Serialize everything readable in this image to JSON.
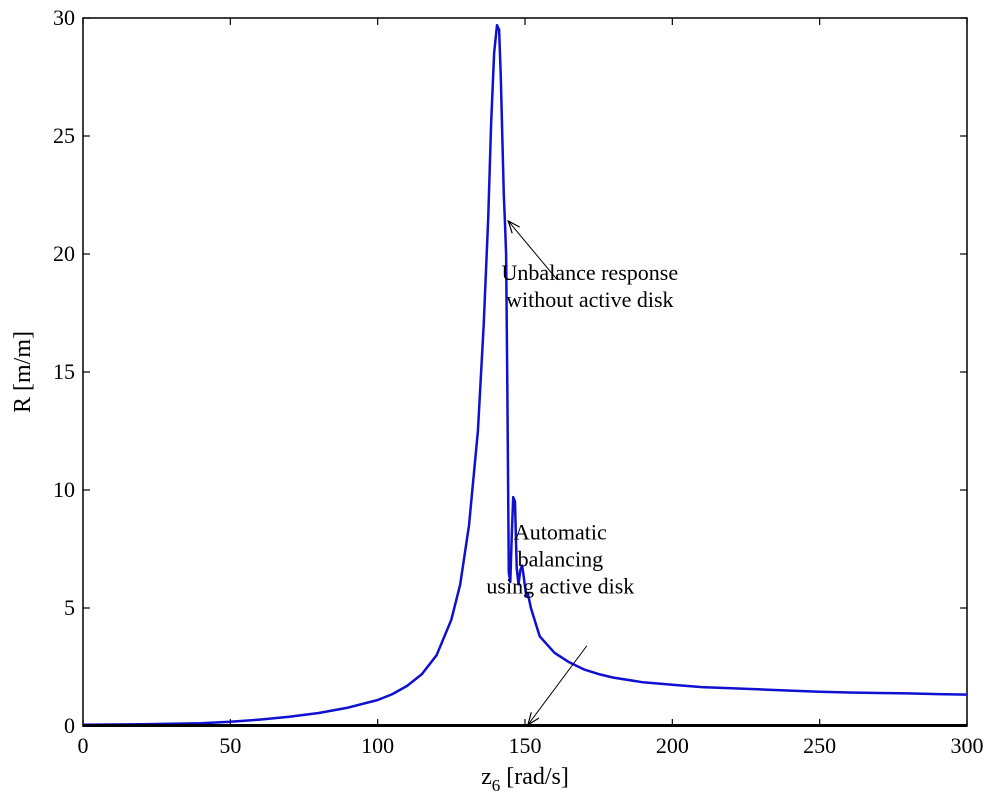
{
  "chart_data": {
    "type": "line",
    "title": "",
    "xlabel": {
      "main": "z",
      "sub": "6",
      "rest": " [rad/s]"
    },
    "ylabel": "R [m/m]",
    "xlim": [
      0,
      300
    ],
    "ylim": [
      0,
      30
    ],
    "xticks": [
      0,
      50,
      100,
      150,
      200,
      250,
      300
    ],
    "yticks": [
      0,
      5,
      10,
      15,
      20,
      25,
      30
    ],
    "grid": false,
    "series": [
      {
        "color": "#1010d0",
        "x": [
          0,
          20,
          40,
          50,
          60,
          70,
          80,
          90,
          100,
          105,
          110,
          115,
          120,
          125,
          128,
          131,
          134,
          136,
          137.5,
          138.5,
          139.5,
          140.5,
          141.2,
          141.8,
          142.3,
          142.8,
          143.2,
          143.6,
          144.0,
          144.5,
          145.0,
          145.5,
          146.0,
          146.6,
          147.2,
          147.8,
          148.4,
          149.0,
          149.5,
          150.0,
          150.5,
          151.0,
          151.5,
          152.0,
          153,
          155,
          160,
          165,
          170,
          175,
          180,
          190,
          200,
          210,
          220,
          230,
          240,
          250,
          260,
          270,
          280,
          290,
          300
        ],
        "y": [
          0.05,
          0.07,
          0.12,
          0.18,
          0.27,
          0.39,
          0.55,
          0.78,
          1.1,
          1.35,
          1.7,
          2.2,
          3.0,
          4.5,
          6.0,
          8.5,
          12.5,
          17.0,
          21.5,
          25.5,
          28.5,
          29.7,
          29.5,
          27.5,
          25.0,
          22.5,
          21.3,
          20.0,
          14.5,
          6.5,
          6.1,
          8.0,
          9.7,
          9.5,
          6.7,
          6.0,
          6.6,
          6.8,
          6.4,
          5.9,
          5.5,
          5.6,
          5.3,
          5.0,
          4.6,
          3.8,
          3.1,
          2.7,
          2.4,
          2.2,
          2.05,
          1.85,
          1.75,
          1.65,
          1.6,
          1.55,
          1.5,
          1.45,
          1.42,
          1.4,
          1.38,
          1.35,
          1.33
        ]
      },
      {
        "color": "#000000",
        "x": [
          0,
          300
        ],
        "y": [
          0.02,
          0.02
        ]
      }
    ],
    "annotations": [
      {
        "lines": [
          "Unbalance response",
          "without active disk"
        ],
        "text_x": 172,
        "text_y": 18.9,
        "arrow_from": [
          161,
          18.9
        ],
        "arrow_to": [
          144.3,
          21.4
        ]
      },
      {
        "lines": [
          "Automatic",
          "balancing",
          "using active disk"
        ],
        "text_x": 162,
        "text_y": 7.9,
        "arrow_from": [
          171,
          3.4
        ],
        "arrow_to": [
          151,
          0.05
        ]
      }
    ]
  }
}
